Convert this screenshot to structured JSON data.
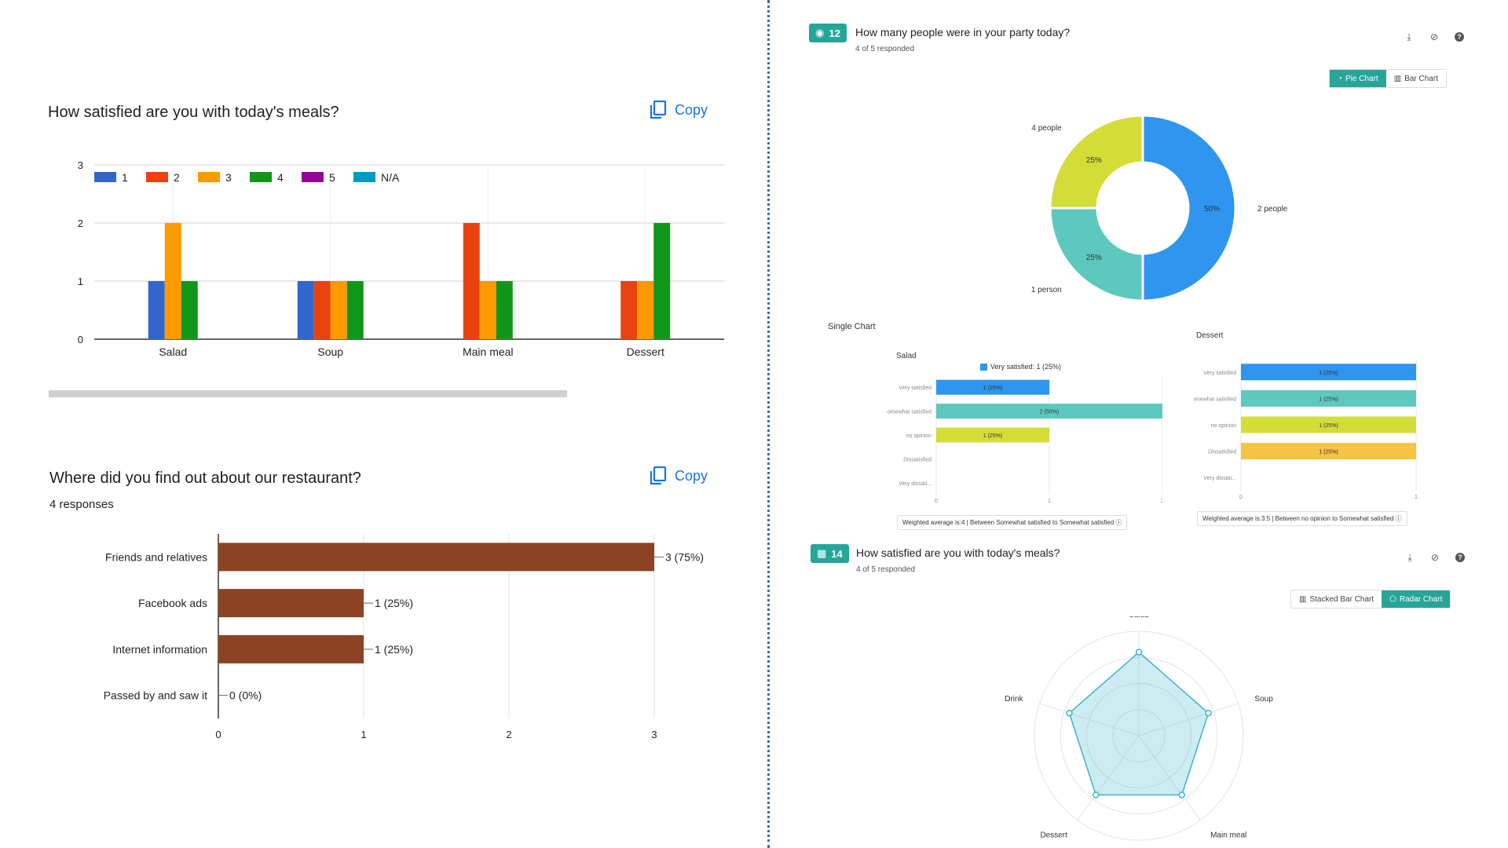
{
  "left": {
    "q1": {
      "title": "How satisfied are you with today's meals?",
      "copy_label": "Copy"
    },
    "q2": {
      "title": "Where did you find out about our restaurant?",
      "responses": "4 responses",
      "copy_label": "Copy"
    }
  },
  "right": {
    "q12": {
      "number": "12",
      "title": "How many people were in your party today?",
      "responded": "4 of 5 responded",
      "btn_pie": "Pie Chart",
      "btn_bar": "Bar Chart",
      "single_chart_label": "Single Chart",
      "salad_title": "Salad",
      "dessert_title": "Dessert",
      "salad_legend": "Very satisfied: 1 (25%)",
      "salad_weighted": "Weighted average is:4 | Between Somewhat satisfied to Somewhat satisfied",
      "dessert_weighted": "Weighted average is:3.5 | Between no opinion to Somewhat satisfied"
    },
    "q14": {
      "number": "14",
      "title": "How satisfied are you with today's meals?",
      "responded": "4 of 5 responded",
      "btn_stacked": "Stacked Bar Chart",
      "btn_radar": "Radar Chart"
    }
  },
  "colors": {
    "copy": "#1a73e8",
    "teal_button": "#26a69a",
    "brown_bar": "#8b4323",
    "divider": "#3a6ea8"
  },
  "chart_data": [
    {
      "id": "meals-grouped",
      "type": "bar",
      "categories": [
        "Salad",
        "Soup",
        "Main meal",
        "Dessert"
      ],
      "series": [
        {
          "name": "1",
          "color": "#3366cc",
          "values": [
            1,
            1,
            0,
            0
          ]
        },
        {
          "name": "2",
          "color": "#e8430f",
          "values": [
            0,
            1,
            2,
            1
          ]
        },
        {
          "name": "3",
          "color": "#ff9900",
          "values": [
            2,
            1,
            1,
            1
          ]
        },
        {
          "name": "4",
          "color": "#109618",
          "values": [
            1,
            1,
            1,
            2
          ]
        },
        {
          "name": "5",
          "color": "#990099",
          "values": [
            0,
            0,
            0,
            0
          ]
        },
        {
          "name": "N/A",
          "color": "#0099c6",
          "values": [
            0,
            0,
            0,
            0
          ]
        }
      ],
      "ylim": [
        0,
        3
      ],
      "yticks": [
        "0",
        "1",
        "2",
        "3"
      ],
      "grid": true,
      "legend": "top-left"
    },
    {
      "id": "source-hbar",
      "type": "bar",
      "orientation": "horizontal",
      "categories": [
        "Friends and relatives",
        "Facebook ads",
        "Internet information",
        "Passed by and saw it"
      ],
      "values": [
        3,
        1,
        1,
        0
      ],
      "labels": [
        "3 (75%)",
        "1 (25%)",
        "1 (25%)",
        "0 (0%)"
      ],
      "xlim": [
        0,
        3
      ],
      "xticks": [
        "0",
        "1",
        "2",
        "3"
      ],
      "grid": true
    },
    {
      "id": "party-donut",
      "type": "pie",
      "categories": [
        "2 people",
        "1 person",
        "4 people"
      ],
      "values": [
        50,
        25,
        25
      ],
      "labels": [
        "50%",
        "25%",
        "25%"
      ],
      "colors": [
        "#2f95ee",
        "#5dc9be",
        "#d4dc38"
      ]
    },
    {
      "id": "salad-single",
      "type": "bar",
      "orientation": "horizontal",
      "categories": [
        "Very satisfied",
        "Somewhat satisfied",
        "no opinion",
        "Dissatisfied",
        "Very dissati..."
      ],
      "values": [
        1,
        2,
        1,
        0,
        0
      ],
      "labels": [
        "1 (25%)",
        "2 (50%)",
        "1 (25%)",
        "",
        ""
      ],
      "colors": [
        "#2f95ee",
        "#5dc9be",
        "#d4dc38",
        "#f6c342",
        "#ef5350"
      ],
      "xlim": [
        0,
        2
      ],
      "xticks": [
        "0",
        "1",
        "2"
      ]
    },
    {
      "id": "dessert-single",
      "type": "bar",
      "orientation": "horizontal",
      "categories": [
        "Very satisfied",
        "Somewhat satisfied",
        "no opinion",
        "Dissatisfied",
        "Very dissati..."
      ],
      "values": [
        1,
        1,
        1,
        1,
        0
      ],
      "labels": [
        "1 (25%)",
        "1 (25%)",
        "1 (25%)",
        "1 (25%)",
        ""
      ],
      "colors": [
        "#2f95ee",
        "#5dc9be",
        "#d4dc38",
        "#f6c342",
        "#ef5350"
      ],
      "xlim": [
        0,
        1
      ],
      "xticks": [
        "0",
        "1"
      ]
    },
    {
      "id": "meals-radar",
      "type": "radar",
      "categories": [
        "Salad",
        "Soup",
        "Main meal",
        "Dessert",
        "Drink"
      ],
      "values": [
        4,
        3.5,
        3.5,
        3.5,
        3.5
      ],
      "rmax": 5,
      "color": "#39b3cc"
    }
  ]
}
